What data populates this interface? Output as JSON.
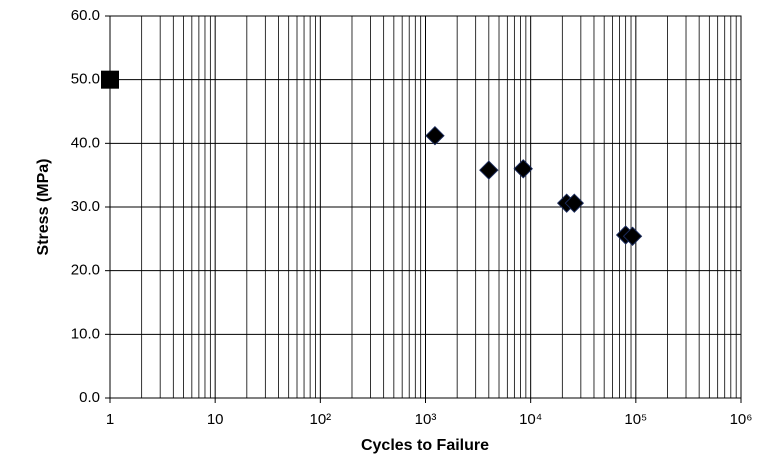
{
  "chart_data": {
    "type": "scatter",
    "x_label": "Cycles to Failure",
    "y_label": "Stress (MPa)",
    "xscale": "log",
    "xlim": [
      1,
      1000000
    ],
    "ylim": [
      0,
      60
    ],
    "xticks": [
      1,
      10,
      {
        "value": 100,
        "label": "10²"
      },
      {
        "value": 1000,
        "label": "10³"
      },
      {
        "value": 10000,
        "label": "10⁴"
      },
      {
        "value": 100000,
        "label": "10⁵"
      },
      {
        "value": 1000000,
        "label": "10⁶"
      }
    ],
    "yticks": [
      {
        "value": 0,
        "label": "0.0"
      },
      {
        "value": 10,
        "label": "10.0"
      },
      {
        "value": 20,
        "label": "20.0"
      },
      {
        "value": 30,
        "label": "30.0"
      },
      {
        "value": 40,
        "label": "40.0"
      },
      {
        "value": 50,
        "label": "50.0"
      },
      {
        "value": 60,
        "label": "60.0"
      }
    ],
    "grid": true,
    "minor_grid": true,
    "series": [
      {
        "marker": "square",
        "color": "#000000",
        "x": [
          1
        ],
        "values": [
          50
        ]
      },
      {
        "marker": "diamond",
        "color": "#000000",
        "x": [
          1230,
          4000,
          8500,
          22000,
          26000,
          80000,
          93000
        ],
        "values": [
          41.2,
          35.8,
          36.0,
          30.6,
          30.6,
          25.6,
          25.4
        ]
      }
    ]
  }
}
